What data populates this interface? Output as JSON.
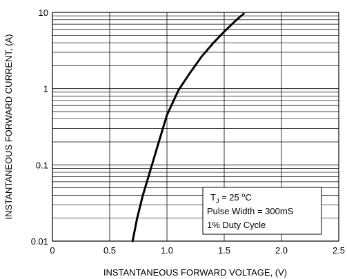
{
  "chart_data": {
    "type": "line",
    "xlabel": "INSTANTANEOUS FORWARD VOLTAGE, (V)",
    "ylabel": "INSTANTANEOUS FORWARD CURRENT, (A)",
    "xlim": [
      0,
      2.5
    ],
    "ylim": [
      0.01,
      10
    ],
    "yscale": "log",
    "grid": true,
    "x_ticks": [
      "0",
      "0.5",
      "1.0",
      "1.5",
      "2.0",
      "2.5"
    ],
    "y_ticks": [
      "0.01",
      "0.1",
      "1",
      "10"
    ],
    "series": [
      {
        "x": [
          0.7,
          0.74,
          0.79,
          0.85,
          0.92,
          1.0,
          1.1,
          1.2,
          1.3,
          1.4,
          1.5,
          1.6,
          1.67
        ],
        "y": [
          0.01,
          0.02,
          0.04,
          0.08,
          0.18,
          0.45,
          0.95,
          1.6,
          2.6,
          3.9,
          5.6,
          7.8,
          9.6
        ]
      }
    ],
    "annotation": {
      "line1_base": "T",
      "line1_sub": "J",
      "line1_mid": " = 25 ",
      "line1_sup": "o",
      "line1_unit": "C",
      "line2": "Pulse Width = 300mS",
      "line3": "1% Duty Cycle"
    }
  }
}
